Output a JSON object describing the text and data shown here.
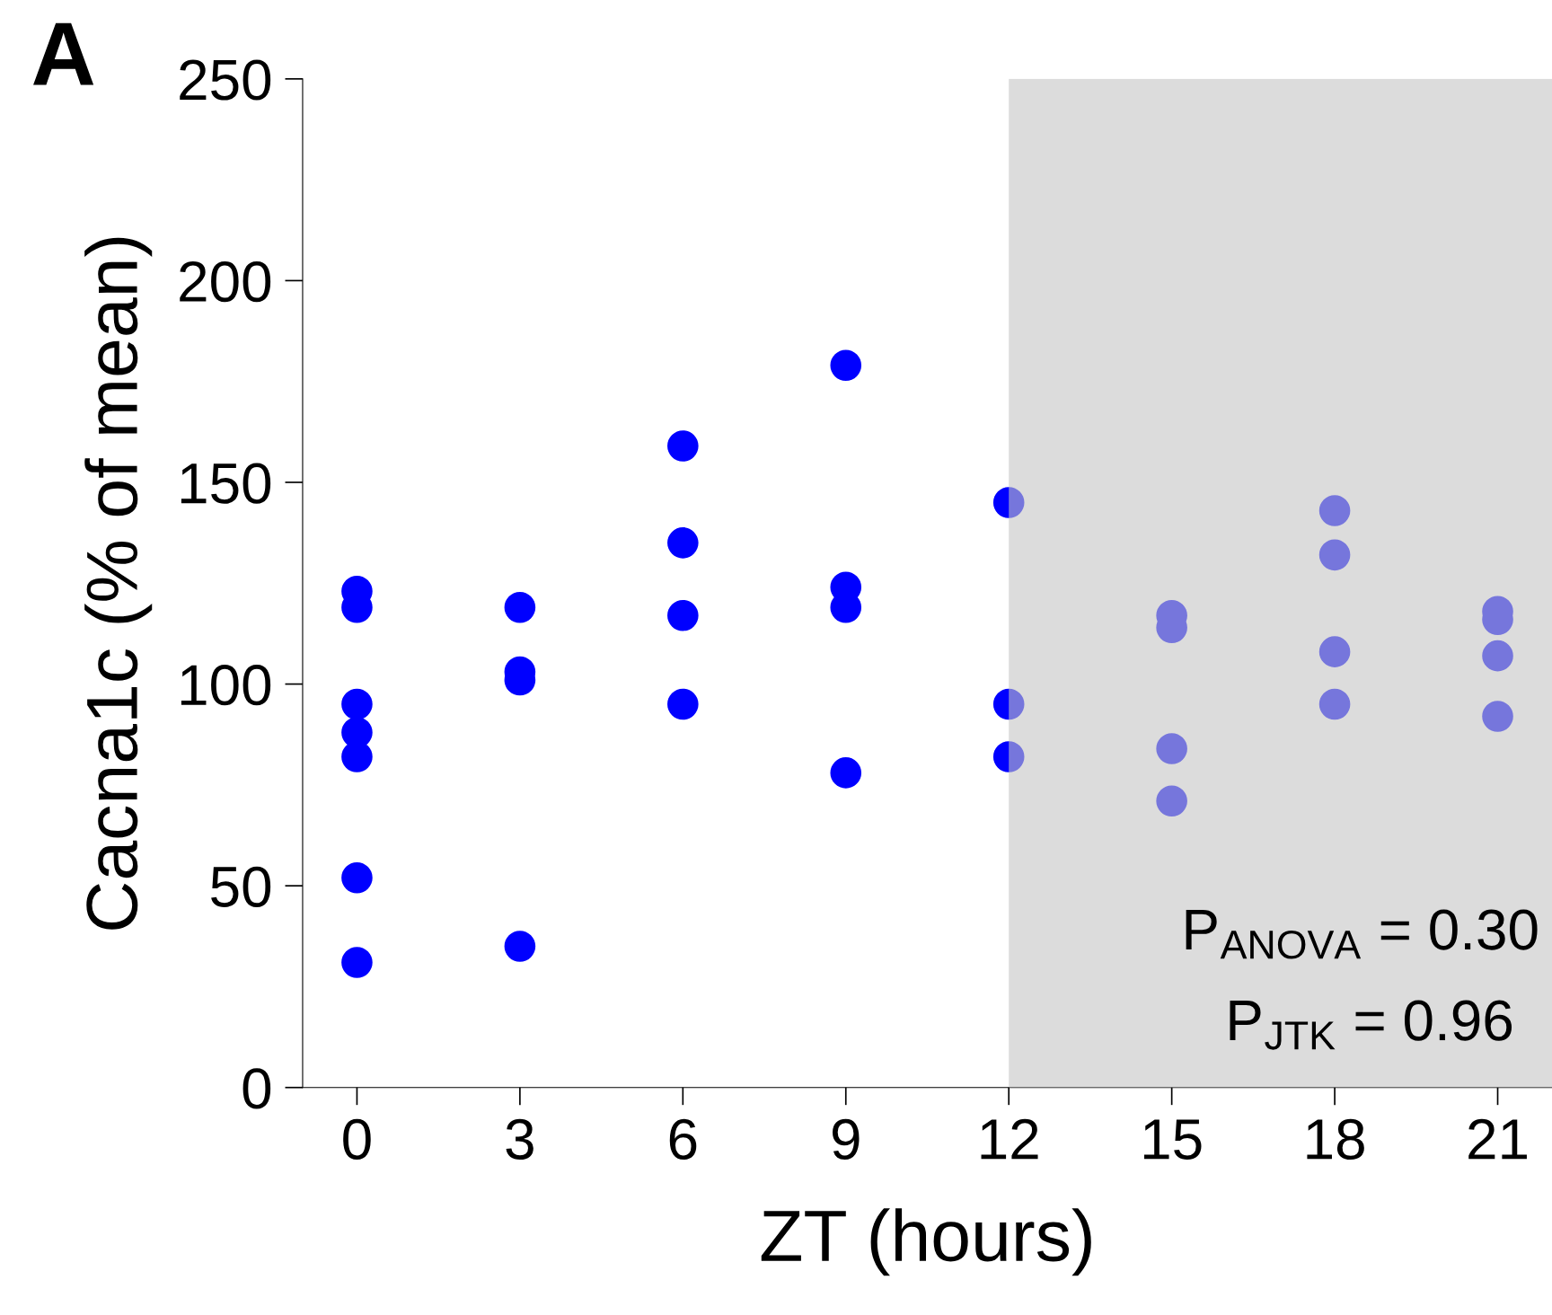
{
  "chart_data": {
    "type": "scatter",
    "title": "A",
    "xlabel": "ZT (hours)",
    "ylabel": "Cacna1c (% of mean)",
    "series": [
      {
        "color": "#0000ff",
        "x": [
          0,
          0,
          0,
          0,
          0,
          0,
          0,
          3,
          3,
          3,
          3,
          6,
          6,
          6,
          6,
          9,
          9,
          9,
          9,
          12,
          12,
          12,
          15,
          15,
          15,
          15,
          18,
          18,
          18,
          18,
          21,
          21,
          21,
          21
        ],
        "values": [
          123,
          119,
          95,
          88,
          82,
          52,
          31,
          119,
          103,
          101,
          35,
          159,
          135,
          117,
          95,
          179,
          124,
          119,
          78,
          145,
          95,
          82,
          117,
          114,
          84,
          71,
          143,
          132,
          108,
          95,
          118,
          116,
          107,
          92
        ]
      }
    ],
    "marker": "circle",
    "xlim": [
      -1,
      22
    ],
    "ylim": [
      0,
      250
    ],
    "xticks": [
      0,
      3,
      6,
      9,
      12,
      15,
      18,
      21
    ],
    "yticks": [
      0,
      50,
      100,
      150,
      200,
      250
    ],
    "bands": [
      {
        "axis": "x",
        "from": 12,
        "to": 22,
        "color": "#c4c4c4"
      }
    ],
    "annotations": [
      "P$_{ANOVA}$ = 0.30",
      "P$_{JTK}$ = 0.96"
    ],
    "grid": false,
    "legend": false
  }
}
